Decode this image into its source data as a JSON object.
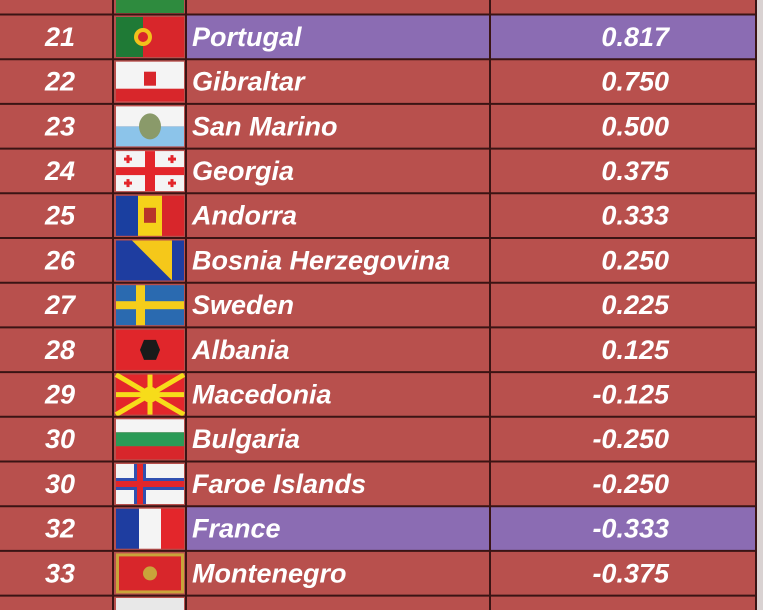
{
  "table": {
    "rows": [
      {
        "rank": "21",
        "country": "Portugal",
        "value": "0.817",
        "highlighted": true
      },
      {
        "rank": "22",
        "country": "Gibraltar",
        "value": "0.750",
        "highlighted": false
      },
      {
        "rank": "23",
        "country": "San Marino",
        "value": "0.500",
        "highlighted": false
      },
      {
        "rank": "24",
        "country": "Georgia",
        "value": "0.375",
        "highlighted": false
      },
      {
        "rank": "25",
        "country": "Andorra",
        "value": "0.333",
        "highlighted": false
      },
      {
        "rank": "26",
        "country": "Bosnia Herzegovina",
        "value": "0.250",
        "highlighted": false
      },
      {
        "rank": "27",
        "country": "Sweden",
        "value": "0.225",
        "highlighted": false
      },
      {
        "rank": "28",
        "country": "Albania",
        "value": "0.125",
        "highlighted": false
      },
      {
        "rank": "29",
        "country": "Macedonia",
        "value": "-0.125",
        "highlighted": false
      },
      {
        "rank": "30",
        "country": "Bulgaria",
        "value": "-0.250",
        "highlighted": false
      },
      {
        "rank": "30",
        "country": "Faroe Islands",
        "value": "-0.250",
        "highlighted": false
      },
      {
        "rank": "32",
        "country": "France",
        "value": "-0.333",
        "highlighted": true
      },
      {
        "rank": "33",
        "country": "Montenegro",
        "value": "-0.375",
        "highlighted": false
      }
    ]
  }
}
